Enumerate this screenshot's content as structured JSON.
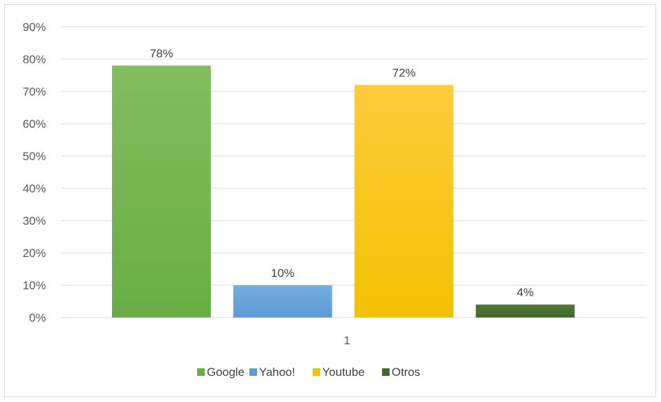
{
  "chart_data": {
    "type": "bar",
    "categories": [
      "1"
    ],
    "series": [
      {
        "name": "Google",
        "values": [
          78
        ],
        "color": "#6aad45",
        "color_light": "#82bd5e"
      },
      {
        "name": "Yahoo!",
        "values": [
          10
        ],
        "color": "#5b9bd5",
        "color_light": "#76aee1"
      },
      {
        "name": "Youtube",
        "values": [
          72
        ],
        "color": "#f2c200",
        "color_light": "#ffcb3b"
      },
      {
        "name": "Otros",
        "values": [
          4
        ],
        "color": "#43682b",
        "color_light": "#4f7a33"
      }
    ],
    "data_labels": [
      "78%",
      "10%",
      "72%",
      "4%"
    ],
    "y_ticks": [
      "0%",
      "10%",
      "20%",
      "30%",
      "40%",
      "50%",
      "60%",
      "70%",
      "80%",
      "90%"
    ],
    "ylim": [
      0,
      90
    ],
    "grid": true,
    "legend_position": "bottom"
  }
}
